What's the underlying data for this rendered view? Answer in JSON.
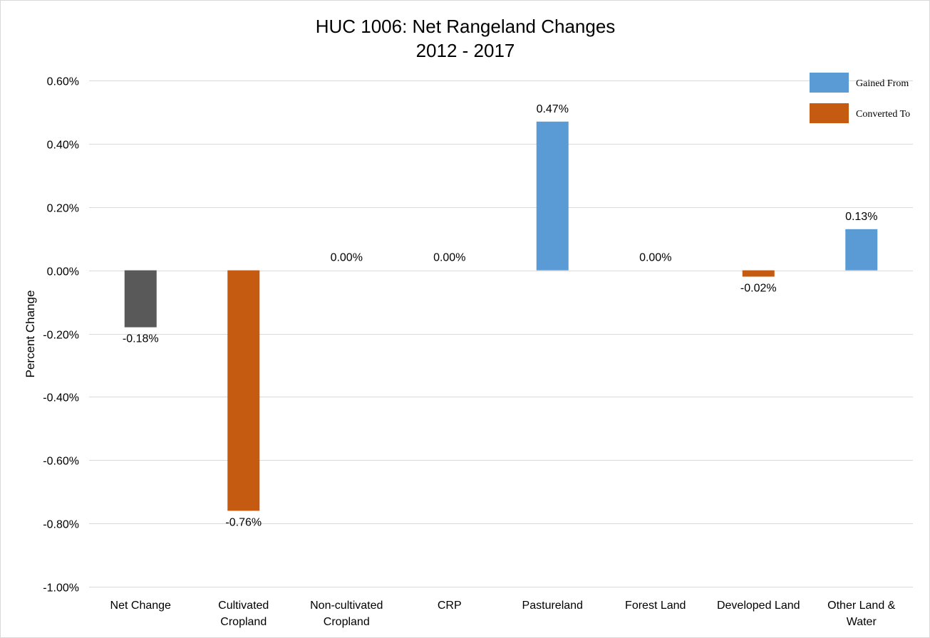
{
  "chart_data": {
    "type": "bar",
    "title": [
      "HUC 1006: Net Rangeland Changes",
      "2012 - 2017"
    ],
    "ylabel": "Percent Change",
    "xlabel": "",
    "ylim": [
      -1.0,
      0.6
    ],
    "ytick_step": 0.2,
    "ytick_format": "percent_2dp",
    "grid": true,
    "legend_position": "top-right",
    "categories": [
      [
        "Net Change"
      ],
      [
        "Cultivated",
        "Cropland"
      ],
      [
        "Non-cultivated",
        "Cropland"
      ],
      [
        "CRP"
      ],
      [
        "Pastureland"
      ],
      [
        "Forest Land"
      ],
      [
        "Developed Land"
      ],
      [
        "Other Land &",
        "Water"
      ]
    ],
    "values": [
      -0.18,
      -0.76,
      0.0,
      0.0,
      0.47,
      0.0,
      -0.02,
      0.13
    ],
    "data_labels": [
      "-0.18%",
      "-0.76%",
      "0.00%",
      "0.00%",
      "0.47%",
      "0.00%",
      "-0.02%",
      "0.13%"
    ],
    "bar_series": [
      "net",
      "converted",
      "converted",
      "converted",
      "gained",
      "converted",
      "converted",
      "gained"
    ],
    "colors": {
      "net": "#595959",
      "gained": "#5b9bd5",
      "converted": "#c55a11"
    },
    "legend": [
      {
        "key": "gained",
        "label": "Gained From"
      },
      {
        "key": "converted",
        "label": "Converted To"
      }
    ]
  }
}
